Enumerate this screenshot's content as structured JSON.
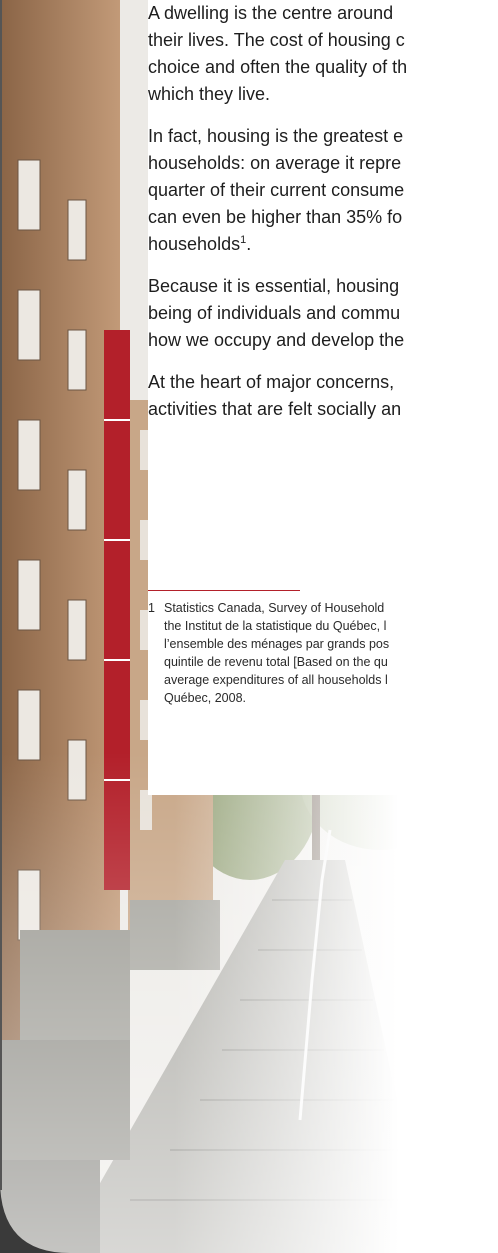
{
  "paragraphs": [
    {
      "lines": [
        "A dwelling is the centre around",
        "their lives. The cost of housing c",
        "choice and often the quality of th",
        "which they live."
      ]
    },
    {
      "lines": [
        "In fact, housing is the greatest e",
        "households: on average it repre",
        "quarter of their current consume",
        "can even be higher than 35% fo"
      ],
      "last": {
        "text": "households",
        "ref": "1",
        "after": "."
      }
    },
    {
      "lines": [
        "Because it is essential, housing",
        "being of individuals and commu",
        "how we occupy and develop the"
      ]
    },
    {
      "lines": [
        "At the heart of major concerns,",
        "activities that are felt socially an"
      ]
    }
  ],
  "footnote": {
    "number": "1",
    "lines": [
      "Statistics Canada, Survey of Household",
      "the Institut de la statistique du Québec, l",
      "l’ensemble des ménages par grands pos",
      "quintile de revenu total [Based on the qu",
      "average expenditures of all households l",
      "Québec, 2008."
    ]
  }
}
